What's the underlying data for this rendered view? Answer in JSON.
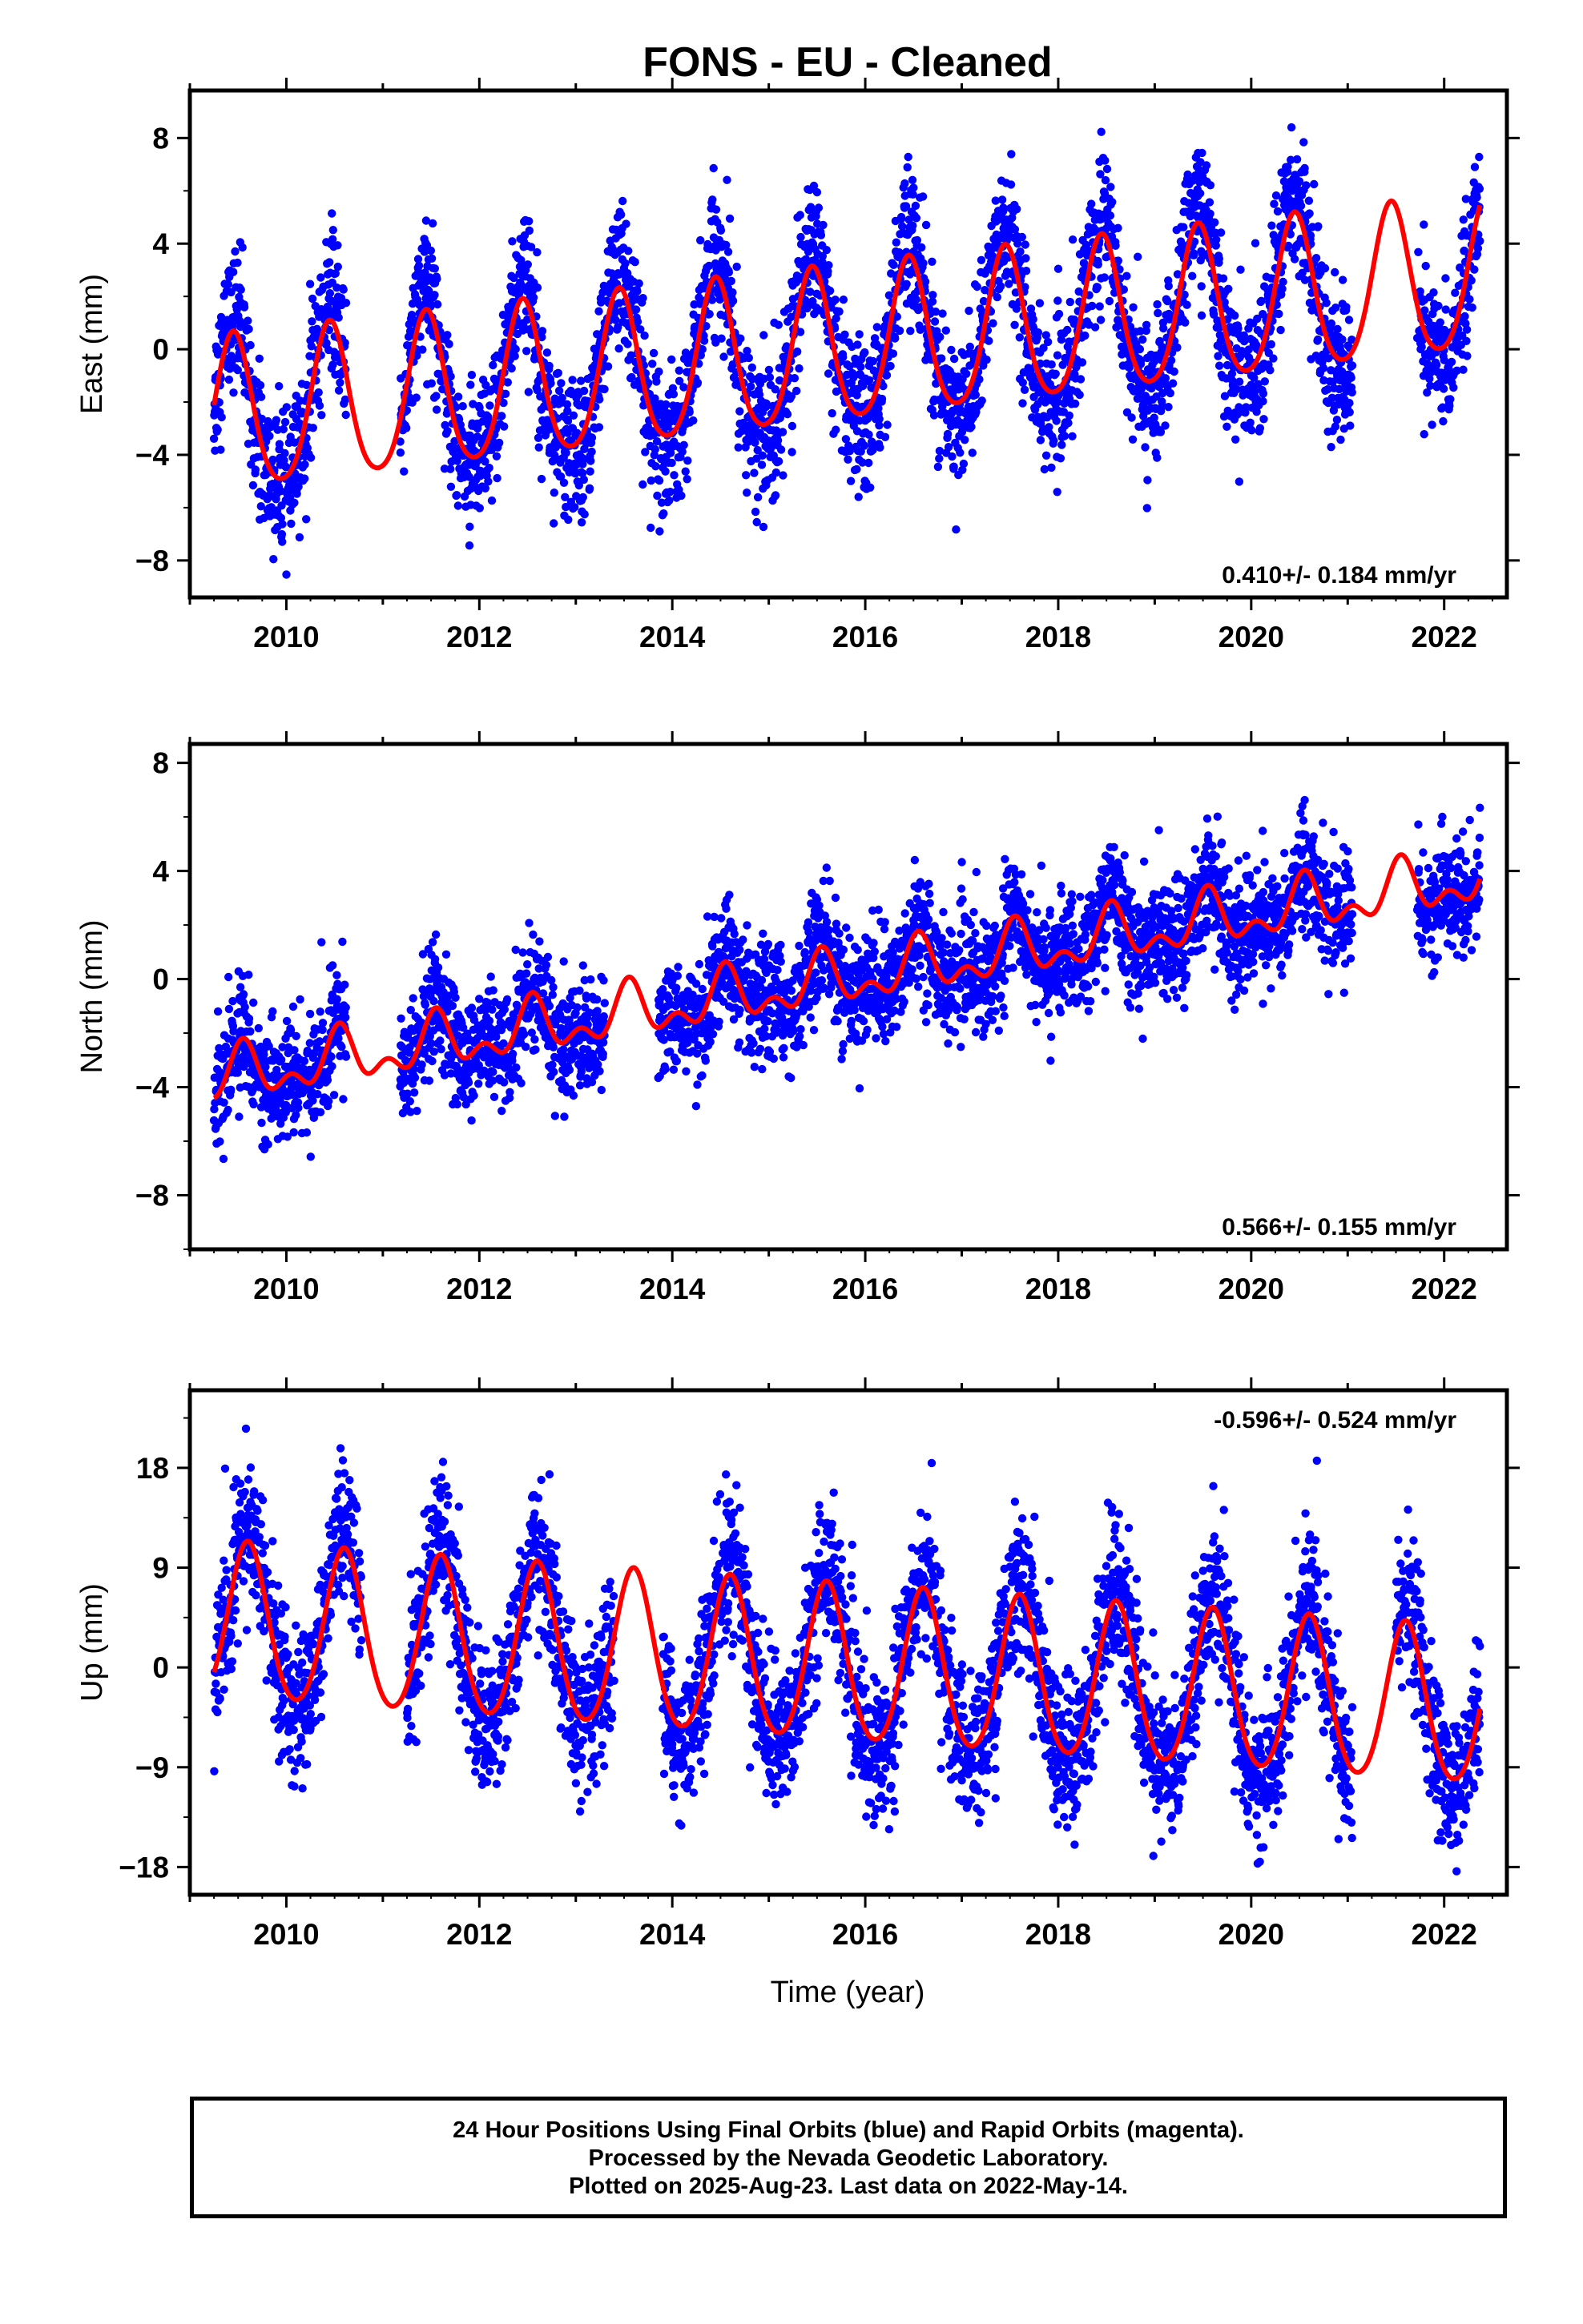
{
  "title": "FONS  - EU - Cleaned",
  "xlabel": "Time (year)",
  "footer": {
    "line1": "24 Hour Positions Using Final Orbits (blue) and Rapid Orbits (magenta).",
    "line2": "Processed by the Nevada Geodetic Laboratory.",
    "line3": "Plotted on 2025-Aug-23. Last data on 2022-May-14."
  },
  "colors": {
    "points": "#0000ff",
    "model": "#ff0000",
    "axis": "#000000"
  },
  "chart_data": [
    {
      "type": "scatter",
      "ylabel": "East (mm)",
      "rate_label": "0.410+/- 0.184 mm/yr",
      "rate_position": "bottom-right",
      "xlim": [
        2009.0,
        2022.65
      ],
      "ylim": [
        -9.4,
        9.8
      ],
      "xticks": [
        2010,
        2012,
        2014,
        2016,
        2018,
        2020,
        2022
      ],
      "yticks": [
        -8,
        -4,
        0,
        4,
        8
      ],
      "grid": false,
      "series": [
        {
          "kind": "points",
          "x_start": 2009.25,
          "x_end": 2022.37,
          "gaps": [
            [
              2010.62,
              2011.18
            ],
            [
              2021.05,
              2021.72
            ]
          ],
          "trend": {
            "ref_year": 2015.8,
            "offset": 0.0,
            "rate": 0.41
          },
          "annual_amplitude": 3.4,
          "annual_peak_year_fraction": 0.45,
          "semiannual_amplitude": 0.5,
          "noise_sd": 1.3
        },
        {
          "kind": "model_curve",
          "x_start": 2009.25,
          "x_end": 2022.37,
          "trend": {
            "ref_year": 2015.8,
            "offset": 0.0,
            "rate": 0.41
          },
          "annual_amplitude": 2.9,
          "annual_peak_year_fraction": 0.45,
          "semiannual_amplitude": 0.4
        }
      ]
    },
    {
      "type": "scatter",
      "ylabel": "North (mm)",
      "rate_label": "0.566+/- 0.155 mm/yr",
      "rate_position": "bottom-right",
      "xlim": [
        2009.0,
        2022.65
      ],
      "ylim": [
        -10.0,
        8.7
      ],
      "xticks": [
        2010,
        2012,
        2014,
        2016,
        2018,
        2020,
        2022
      ],
      "yticks": [
        -8,
        -4,
        0,
        4,
        8
      ],
      "grid": false,
      "series": [
        {
          "kind": "points",
          "x_start": 2009.25,
          "x_end": 2022.37,
          "gaps": [
            [
              2010.62,
              2011.18
            ],
            [
              2013.3,
              2013.85
            ],
            [
              2021.05,
              2021.72
            ]
          ],
          "trend": {
            "ref_year": 2015.8,
            "offset": 0.0,
            "rate": 0.566
          },
          "annual_amplitude": 0.9,
          "annual_peak_year_fraction": 0.55,
          "semiannual_amplitude": 0.6,
          "noise_sd": 1.05
        },
        {
          "kind": "model_curve",
          "x_start": 2009.25,
          "x_end": 2022.37,
          "trend": {
            "ref_year": 2015.8,
            "offset": 0.0,
            "rate": 0.566
          },
          "annual_amplitude": 0.8,
          "annual_peak_year_fraction": 0.55,
          "semiannual_amplitude": 0.55
        }
      ]
    },
    {
      "type": "scatter",
      "ylabel": "Up (mm)",
      "rate_label": "-0.596+/- 0.524 mm/yr",
      "rate_position": "top-right",
      "xlim": [
        2009.0,
        2022.65
      ],
      "ylim": [
        -20.5,
        25.0
      ],
      "xticks": [
        2010,
        2012,
        2014,
        2016,
        2018,
        2020,
        2022
      ],
      "yticks": [
        -18,
        -9,
        0,
        9,
        18
      ],
      "grid": false,
      "series": [
        {
          "kind": "points",
          "x_start": 2009.25,
          "x_end": 2022.37,
          "gaps": [
            [
              2010.78,
              2011.25
            ],
            [
              2013.4,
              2013.9
            ],
            [
              2021.05,
              2021.5
            ]
          ],
          "trend": {
            "ref_year": 2015.8,
            "offset": 0.0,
            "rate": -0.596
          },
          "annual_amplitude": 8.0,
          "annual_peak_year_fraction": 0.6,
          "semiannual_amplitude": 0.8,
          "noise_sd": 3.3
        },
        {
          "kind": "model_curve",
          "x_start": 2009.25,
          "x_end": 2022.37,
          "trend": {
            "ref_year": 2015.8,
            "offset": 0.0,
            "rate": -0.596
          },
          "annual_amplitude": 7.0,
          "annual_peak_year_fraction": 0.6,
          "semiannual_amplitude": 0.7
        }
      ]
    }
  ]
}
